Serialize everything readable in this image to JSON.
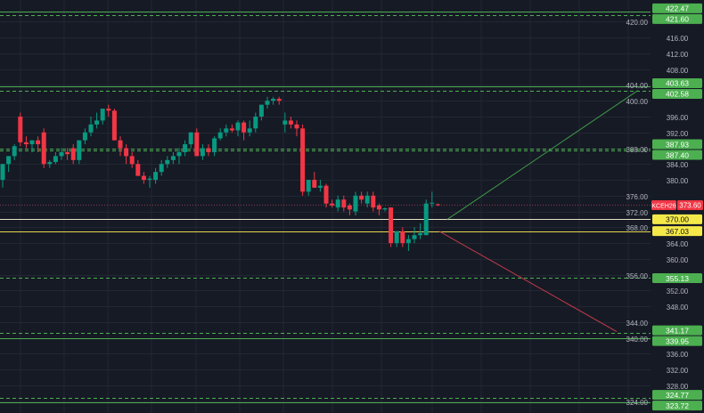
{
  "chart_data": {
    "type": "candlestick",
    "symbol": "KCEH26",
    "last_price": "373.60",
    "ylim": [
      321,
      425.5
    ],
    "y_ticks": [
      "420.00",
      "416.00",
      "412.00",
      "408.00",
      "404.00",
      "400.00",
      "396.00",
      "392.00",
      "388.00",
      "384.00",
      "380.00",
      "376.00",
      "372.00",
      "368.00",
      "364.00",
      "360.00",
      "356.00",
      "352.00",
      "348.00",
      "344.00",
      "340.00",
      "336.00",
      "332.00",
      "328.00",
      "324.00"
    ],
    "grid": true,
    "colors": {
      "background": "#161a25",
      "grid": "#232733",
      "up": "#089981",
      "down": "#f23645",
      "level_green": "#4caf50",
      "level_yellow": "#e8d44d",
      "axis_text": "#b2b5be"
    },
    "levels": [
      {
        "price": 422.47,
        "label": "422.47",
        "style": "solid",
        "color": "green"
      },
      {
        "price": 421.6,
        "label": "421.60",
        "style": "dashed",
        "color": "green"
      },
      {
        "price": 403.63,
        "label": "403.63",
        "style": "solid",
        "color": "green"
      },
      {
        "price": 402.58,
        "label": "402.58",
        "style": "dashed",
        "color": "green"
      },
      {
        "price": 387.93,
        "label": "387.93",
        "style": "dashed",
        "color": "green"
      },
      {
        "price": 387.4,
        "label": "387.40",
        "style": "dashed",
        "color": "green"
      },
      {
        "price": 370.0,
        "label": "370.00",
        "style": "solid",
        "color": "yellow"
      },
      {
        "price": 367.03,
        "label": "367.03",
        "style": "solid",
        "color": "yellow"
      },
      {
        "price": 355.13,
        "label": "355.13",
        "style": "dashed",
        "color": "green"
      },
      {
        "price": 341.17,
        "label": "341.17",
        "style": "dashed",
        "color": "green"
      },
      {
        "price": 339.95,
        "label": "339.95",
        "style": "solid",
        "color": "green"
      },
      {
        "price": 324.77,
        "label": "324.77",
        "style": "dashed",
        "color": "green"
      },
      {
        "price": 323.72,
        "label": "323.72",
        "style": "solid",
        "color": "green"
      }
    ],
    "trend_lines": [
      {
        "color": "green",
        "from": [
          75.6,
          370.0
        ],
        "to": [
          108,
          402.6
        ]
      },
      {
        "color": "red",
        "from": [
          74.2,
          367.0
        ],
        "to": [
          104.4,
          341.6
        ]
      }
    ],
    "candles": [
      [
        380,
        384,
        378,
        384
      ],
      [
        384,
        386,
        382,
        386
      ],
      [
        386,
        389,
        385,
        388.5
      ],
      [
        396,
        397,
        388.5,
        389.5
      ],
      [
        389.5,
        391,
        388,
        389
      ],
      [
        389,
        390,
        387,
        390
      ],
      [
        390,
        391,
        387,
        389
      ],
      [
        392,
        393,
        383,
        384
      ],
      [
        384,
        385,
        383,
        384.5
      ],
      [
        384.5,
        387,
        384,
        386
      ],
      [
        386,
        388,
        385,
        387
      ],
      [
        387,
        388,
        385,
        386.5
      ],
      [
        388,
        389,
        384,
        385
      ],
      [
        385,
        390,
        384,
        390
      ],
      [
        390,
        393,
        389,
        392
      ],
      [
        392,
        396,
        391,
        394
      ],
      [
        394,
        397,
        393,
        395
      ],
      [
        395,
        398,
        394,
        398
      ],
      [
        398,
        399,
        396,
        397.5
      ],
      [
        397.5,
        398,
        390,
        390
      ],
      [
        390,
        391,
        386,
        388
      ],
      [
        388,
        389,
        384,
        386
      ],
      [
        386,
        387,
        383,
        384
      ],
      [
        384,
        385,
        381,
        381
      ],
      [
        381,
        382,
        379,
        380
      ],
      [
        380,
        381,
        378,
        380.3
      ],
      [
        380,
        383,
        379,
        382
      ],
      [
        382,
        385,
        381,
        384
      ],
      [
        384,
        386,
        383,
        385
      ],
      [
        385,
        387,
        384,
        386
      ],
      [
        386,
        388,
        384,
        387
      ],
      [
        387,
        390,
        386,
        389
      ],
      [
        389,
        392,
        388,
        392
      ],
      [
        392,
        393,
        386,
        386
      ],
      [
        386,
        389,
        385,
        388
      ],
      [
        388,
        389,
        386,
        387
      ],
      [
        387,
        391,
        386,
        390.5
      ],
      [
        390.5,
        393,
        390,
        392
      ],
      [
        392,
        394,
        391,
        393
      ],
      [
        393,
        394,
        392,
        392.5
      ],
      [
        392.5,
        395,
        391,
        394.5
      ],
      [
        394.5,
        395,
        390,
        392
      ],
      [
        392,
        395,
        391,
        393
      ],
      [
        393,
        397,
        392,
        396
      ],
      [
        396,
        399,
        395,
        399
      ],
      [
        399,
        401,
        398,
        400
      ],
      [
        400,
        401,
        399,
        400.5
      ],
      [
        400.5,
        401,
        399,
        400
      ],
      [
        394,
        397,
        392,
        395
      ],
      [
        395,
        396,
        393,
        394
      ],
      [
        394,
        395,
        391,
        393
      ],
      [
        393,
        394,
        376,
        377
      ],
      [
        377,
        380,
        376,
        380
      ],
      [
        380,
        382,
        378,
        378
      ],
      [
        378,
        380,
        377,
        378.5
      ],
      [
        378.5,
        379,
        373,
        374
      ],
      [
        374,
        375,
        373,
        373.5
      ],
      [
        373,
        376,
        372,
        375
      ],
      [
        375,
        376,
        372,
        373
      ],
      [
        373.5,
        374,
        371,
        372.5
      ],
      [
        372,
        377,
        371,
        376
      ],
      [
        376,
        377,
        374,
        375
      ],
      [
        374,
        377,
        373,
        376
      ],
      [
        376,
        377,
        372,
        373
      ],
      [
        373.5,
        374,
        371,
        372.5
      ],
      [
        372.5,
        373,
        372,
        372.8
      ],
      [
        373,
        373,
        363,
        364
      ],
      [
        364,
        367,
        363,
        367
      ],
      [
        367,
        368,
        363,
        364
      ],
      [
        364,
        366,
        362,
        365
      ],
      [
        365,
        368,
        364,
        366
      ],
      [
        366,
        369,
        365,
        366.5
      ],
      [
        366,
        375,
        366,
        374
      ],
      [
        374,
        377,
        373,
        374.2
      ],
      [
        373.8,
        374,
        373.4,
        373.6
      ]
    ]
  }
}
